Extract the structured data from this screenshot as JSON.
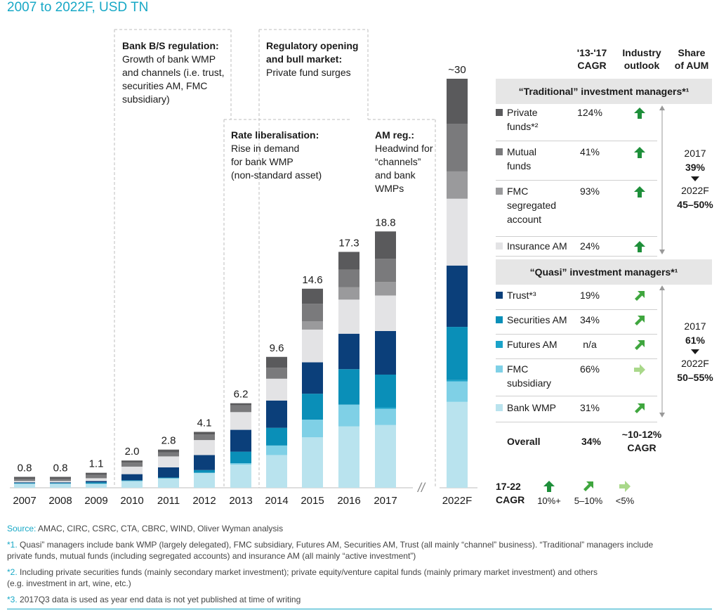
{
  "subtitle": "2007 to 2022F, USD TN",
  "chart_data": {
    "type": "bar",
    "stacked": true,
    "categories": [
      "2007",
      "2008",
      "2009",
      "2010",
      "2011",
      "2012",
      "2013",
      "2014",
      "2015",
      "2016",
      "2017",
      "2022F"
    ],
    "totals_labels": [
      "0.8",
      "0.8",
      "1.1",
      "2.0",
      "2.8",
      "4.1",
      "6.2",
      "9.6",
      "14.6",
      "17.3",
      "18.8",
      "~30"
    ],
    "totals": [
      0.8,
      0.8,
      1.1,
      2.0,
      2.8,
      4.1,
      6.2,
      9.6,
      14.6,
      17.3,
      18.8,
      30
    ],
    "series": [
      {
        "name": "Bank WMP",
        "color": "#b9e3ee",
        "values": [
          0.3,
          0.3,
          0.3,
          0.5,
          0.7,
          1.1,
          1.7,
          2.4,
          3.7,
          4.5,
          4.6,
          6.3
        ]
      },
      {
        "name": "FMC subsidiary",
        "color": "#7fd0e6",
        "values": [
          0,
          0,
          0,
          0,
          0,
          0,
          0.1,
          0.7,
          1.3,
          1.6,
          1.2,
          1.5
        ]
      },
      {
        "name": "Futures AM",
        "color": "#1aa3c9",
        "values": [
          0,
          0,
          0,
          0,
          0,
          0,
          0,
          0,
          0,
          0,
          0.1,
          0.1
        ]
      },
      {
        "name": "Securities AM",
        "color": "#0a8fb8",
        "values": [
          0.05,
          0.05,
          0.1,
          0.05,
          0.05,
          0.2,
          0.85,
          1.3,
          1.9,
          2.6,
          2.4,
          3.9
        ]
      },
      {
        "name": "Trust",
        "color": "#0b3f7a",
        "values": [
          0.05,
          0.05,
          0.1,
          0.45,
          0.75,
          1.1,
          1.6,
          2.0,
          2.3,
          2.6,
          3.2,
          4.5
        ]
      },
      {
        "name": "Insurance AM",
        "color": "#e3e3e5",
        "values": [
          0.1,
          0.1,
          0.2,
          0.55,
          0.8,
          1.1,
          1.3,
          1.6,
          2.4,
          2.5,
          2.6,
          4.9
        ]
      },
      {
        "name": "FMC segregated account",
        "color": "#9a9a9c",
        "values": [
          0,
          0,
          0,
          0,
          0,
          0,
          0,
          0,
          0.6,
          0.9,
          1.0,
          2.0
        ]
      },
      {
        "name": "Mutual funds",
        "color": "#7a7a7c",
        "values": [
          0.15,
          0.15,
          0.25,
          0.3,
          0.3,
          0.4,
          0.5,
          0.8,
          1.3,
          1.3,
          1.7,
          3.5
        ]
      },
      {
        "name": "Private funds",
        "color": "#5a5a5c",
        "values": [
          0.15,
          0.15,
          0.15,
          0.15,
          0.2,
          0.2,
          0.15,
          0.8,
          1.1,
          1.3,
          2.0,
          3.3
        ]
      }
    ],
    "break_marker": "//"
  },
  "annotations": [
    {
      "title": "Bank B/S regulation:",
      "lines": [
        "Growth of bank WMP",
        "and channels (i.e. trust,",
        "securities AM, FMC",
        "subsidiary)"
      ]
    },
    {
      "title": "Regulatory opening",
      "title2": "and bull market:",
      "lines": [
        "Private fund surges"
      ]
    },
    {
      "title": "Rate liberalisation:",
      "lines": [
        "Rise in demand",
        "for bank WMP",
        "(non-standard asset)"
      ]
    },
    {
      "title": "AM reg.:",
      "lines": [
        "Headwind for",
        "“channels”",
        "and bank",
        "WMPs"
      ]
    }
  ],
  "table": {
    "headers": {
      "cagr": [
        "'13-'17",
        "CAGR"
      ],
      "outlook": [
        "Industry",
        "outlook"
      ],
      "share": [
        "Share",
        "of AUM"
      ]
    },
    "traditional_title": "“Traditional” investment managers*¹",
    "quasi_title": "“Quasi” investment managers*¹",
    "traditional_rows": [
      {
        "lines": [
          "Private",
          "funds*²"
        ],
        "cagr": "124%",
        "outlook": "up",
        "color": "#5a5a5c"
      },
      {
        "lines": [
          "Mutual",
          "funds"
        ],
        "cagr": "41%",
        "outlook": "up",
        "color": "#7a7a7c"
      },
      {
        "lines": [
          "FMC",
          "segregated",
          "account"
        ],
        "cagr": "93%",
        "outlook": "up",
        "color": "#9a9a9c"
      },
      {
        "lines": [
          "Insurance AM"
        ],
        "cagr": "24%",
        "outlook": "up",
        "color": "#e3e3e5"
      }
    ],
    "quasi_rows": [
      {
        "lines": [
          "Trust*³"
        ],
        "cagr": "19%",
        "outlook": "diag",
        "color": "#0b3f7a"
      },
      {
        "lines": [
          "Securities AM"
        ],
        "cagr": "34%",
        "outlook": "diag",
        "color": "#0a8fb8"
      },
      {
        "lines": [
          "Futures AM"
        ],
        "cagr": "n/a",
        "outlook": "diag",
        "color": "#1aa3c9"
      },
      {
        "lines": [
          "FMC",
          "subsidiary"
        ],
        "cagr": "66%",
        "outlook": "right",
        "color": "#7fd0e6"
      },
      {
        "lines": [
          "Bank WMP"
        ],
        "cagr": "31%",
        "outlook": "diag",
        "color": "#b9e3ee"
      }
    ],
    "traditional_share": {
      "from_year": "2017",
      "from": "39%",
      "to_year": "2022F",
      "to": "45–50%"
    },
    "quasi_share": {
      "from_year": "2017",
      "from": "61%",
      "to_year": "2022F",
      "to": "50–55%"
    },
    "overall": {
      "label": "Overall",
      "cagr": "34%",
      "outlook_lines": [
        "~10-12%",
        "CAGR"
      ]
    }
  },
  "legend": {
    "label_lines": [
      "17-22",
      "CAGR"
    ],
    "items": [
      {
        "kind": "up",
        "label": "10%+"
      },
      {
        "kind": "diag",
        "label": "5–10%"
      },
      {
        "kind": "right",
        "label": "<5%"
      }
    ]
  },
  "colors": {
    "arrow_dark": "#1e8f3a",
    "arrow_mid": "#3fa63e",
    "arrow_light": "#a9d88a",
    "accent": "#17a8c6"
  },
  "footnotes": [
    {
      "key": "Source:",
      "text": " AMAC, CIRC, CSRC, CTA, CBRC, WIND, Oliver Wyman analysis"
    },
    {
      "key": "*1.",
      "text": " Quasi” managers include bank WMP (largely delegated), FMC subsidiary, Futures AM, Securities AM, Trust (all mainly “channel” business). “Traditional” managers include"
    },
    {
      "key": "",
      "text": "private funds, mutual funds (including segregated accounts) and insurance AM (all mainly “active investment”)"
    },
    {
      "key": "*2.",
      "text": " Including private securities funds (mainly secondary market investment); private equity/venture capital funds (mainly primary market investment) and others"
    },
    {
      "key": "",
      "text": "(e.g. investment in art, wine, etc.)"
    },
    {
      "key": "*3.",
      "text": " 2017Q3 data is used as year end data is not yet published at time of writing"
    }
  ]
}
